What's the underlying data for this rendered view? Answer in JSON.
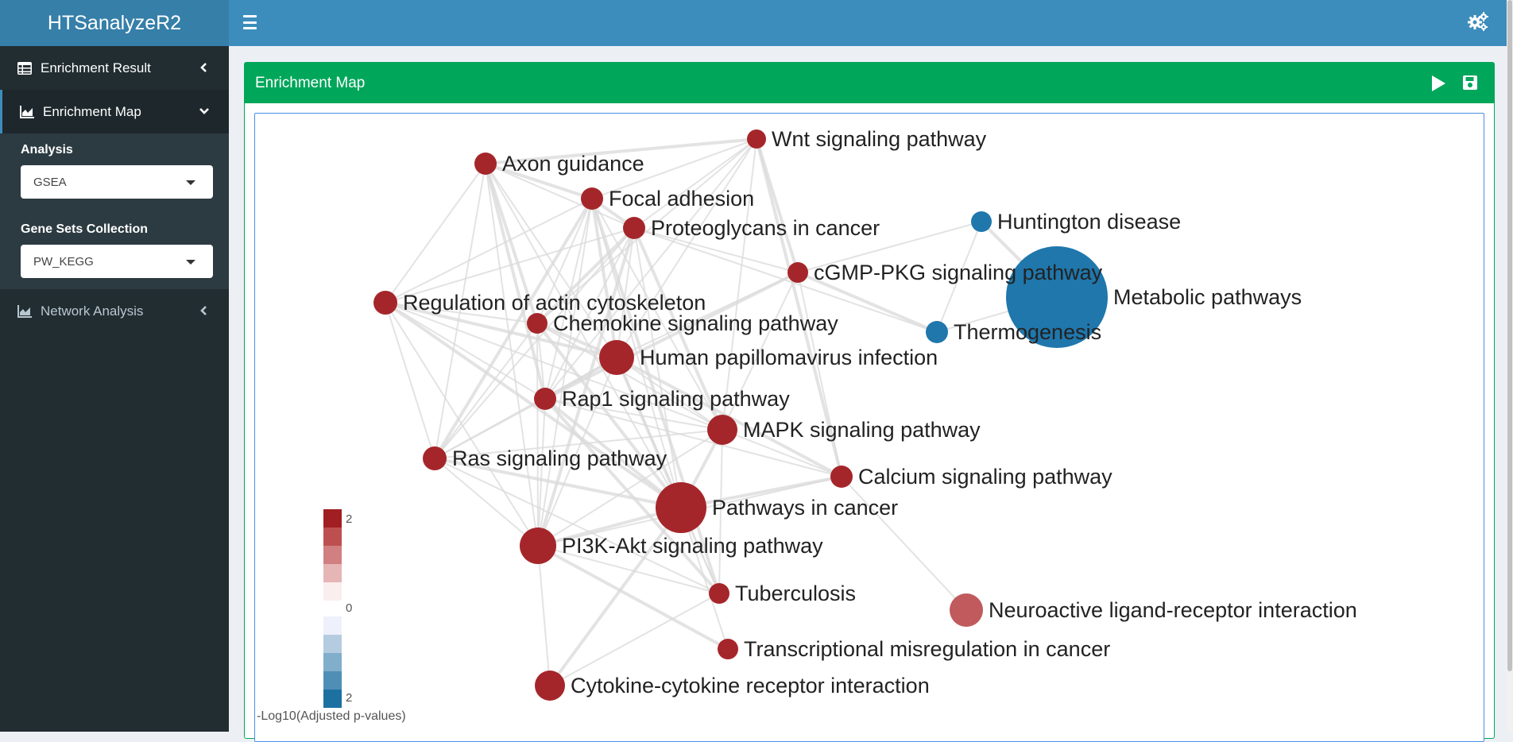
{
  "app": {
    "title": "HTSanalyzeR2"
  },
  "sidebar": {
    "items": [
      {
        "label": "Enrichment Result",
        "icon": "table-icon"
      },
      {
        "label": "Enrichment Map",
        "icon": "area-chart-icon"
      },
      {
        "label": "Network Analysis",
        "icon": "area-chart-icon"
      }
    ],
    "analysis": {
      "label": "Analysis",
      "value": "GSEA"
    },
    "gene_sets": {
      "label": "Gene Sets Collection",
      "value": "PW_KEGG"
    }
  },
  "box": {
    "title": "Enrichment Map"
  },
  "legend": {
    "title": "-Log10(Adjusted p-values)",
    "top_value": "2",
    "mid_value": "0",
    "bottom_value": "2",
    "red_shades": [
      "#a11f22",
      "#be4f51",
      "#d17f80",
      "#e6b5b5",
      "#fbeeee"
    ],
    "blue_shades": [
      "#eef0fb",
      "#b5cce0",
      "#80aecb",
      "#4f8fb6",
      "#1c71a1"
    ]
  },
  "network": {
    "colors": {
      "red": "#a5262a",
      "light_red": "#c05a5c",
      "blue": "#1f77ac",
      "edge": "#d9d9d9"
    },
    "nodes": [
      {
        "label": "Wnt signaling pathway",
        "color": "red",
        "size": 1
      },
      {
        "label": "Axon guidance",
        "color": "red",
        "size": 1
      },
      {
        "label": "Focal adhesion",
        "color": "red",
        "size": 1
      },
      {
        "label": "Proteoglycans in cancer",
        "color": "red",
        "size": 1
      },
      {
        "label": "Huntington disease",
        "color": "blue",
        "size": 1
      },
      {
        "label": "cGMP-PKG signaling pathway",
        "color": "red",
        "size": 1
      },
      {
        "label": "Metabolic pathways",
        "color": "blue",
        "size": 5
      },
      {
        "label": "Regulation of actin cytoskeleton",
        "color": "red",
        "size": 1
      },
      {
        "label": "Chemokine signaling pathway",
        "color": "red",
        "size": 1
      },
      {
        "label": "Thermogenesis",
        "color": "blue",
        "size": 1
      },
      {
        "label": "Human papillomavirus infection",
        "color": "red",
        "size": 2
      },
      {
        "label": "Rap1 signaling pathway",
        "color": "red",
        "size": 1
      },
      {
        "label": "MAPK signaling pathway",
        "color": "red",
        "size": 2
      },
      {
        "label": "Ras signaling pathway",
        "color": "red",
        "size": 1
      },
      {
        "label": "Calcium signaling pathway",
        "color": "red",
        "size": 1
      },
      {
        "label": "Pathways in cancer",
        "color": "red",
        "size": 3
      },
      {
        "label": "PI3K-Akt signaling pathway",
        "color": "red",
        "size": 2
      },
      {
        "label": "Tuberculosis",
        "color": "red",
        "size": 1
      },
      {
        "label": "Neuroactive ligand-receptor interaction",
        "color": "light_red",
        "size": 2
      },
      {
        "label": "Transcriptional misregulation in cancer",
        "color": "red",
        "size": 1
      },
      {
        "label": "Cytokine-cytokine receptor interaction",
        "color": "red",
        "size": 2
      }
    ]
  }
}
